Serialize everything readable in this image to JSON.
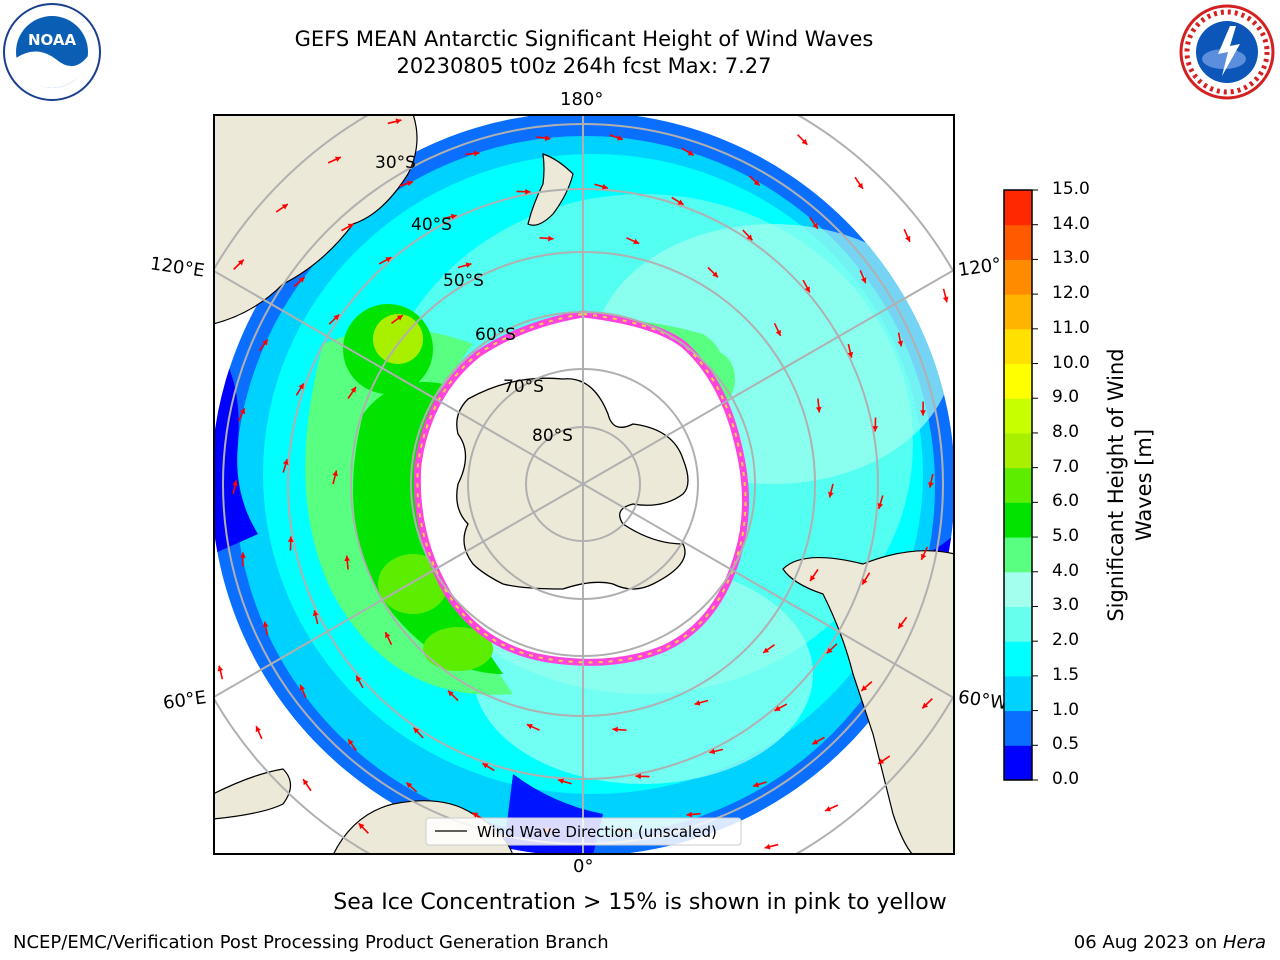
{
  "title_line1": "GEFS MEAN Antarctic Significant Height of Wind Waves",
  "title_line2": "20230805 t00z 264h fcst   Max: 7.27",
  "logos": {
    "left": "NOAA",
    "right": "NATIONAL WEATHER SERVICE"
  },
  "longitude_labels": {
    "top": "180°",
    "bottom": "0°",
    "left_upper": "120°E",
    "left_lower": "60°E",
    "right_upper": "120°",
    "right_lower": "60°W"
  },
  "latitude_labels": [
    "30°S",
    "40°S",
    "50°S",
    "60°S",
    "70°S",
    "80°S"
  ],
  "legend": {
    "label": "Wind Wave Direction (unscaled)"
  },
  "colorbar": {
    "label_line1": "Significant Height of Wind",
    "label_line2": "Waves [m]",
    "ticks": [
      "0.0",
      "0.5",
      "1.0",
      "1.5",
      "2.0",
      "3.0",
      "4.0",
      "5.0",
      "6.0",
      "7.0",
      "8.0",
      "9.0",
      "10.0",
      "11.0",
      "12.0",
      "13.0",
      "14.0",
      "15.0"
    ],
    "colors": [
      "#0000ff",
      "#0a6eff",
      "#00d2ff",
      "#00ffff",
      "#66ffee",
      "#a3ffee",
      "#58ff80",
      "#00e400",
      "#5ced00",
      "#a8f000",
      "#c8ff00",
      "#ffff00",
      "#ffe000",
      "#ffb400",
      "#ff8c00",
      "#ff5a00",
      "#ff2800"
    ]
  },
  "colors": {
    "land": "#ede9d8",
    "sea_ice_edge": "#ff44dd",
    "arrow": "#ff0000",
    "grid": "#b0b0b0",
    "wave_low": "#0a6eff",
    "wave_mid": "#00ffff",
    "wave_high": "#58ff80",
    "wave_peak": "#a8f000"
  },
  "note": "Sea Ice Concentration > 15% is shown in pink to yellow",
  "footer_left": "NCEP/EMC/Verification Post Processing Product Generation Branch",
  "footer_date": "06 Aug 2023 on ",
  "footer_machine": "Hera"
}
